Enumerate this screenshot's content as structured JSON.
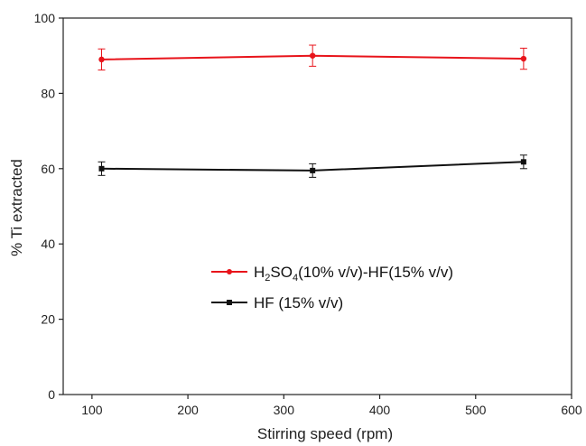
{
  "chart_data": {
    "type": "line",
    "xlabel": "Stirring speed (rpm)",
    "ylabel": "% Ti extracted",
    "xlim": [
      70,
      600
    ],
    "ylim": [
      0,
      100
    ],
    "xticks": [
      100,
      200,
      300,
      400,
      500,
      600
    ],
    "yticks": [
      0,
      20,
      40,
      60,
      80,
      100
    ],
    "x": [
      110,
      330,
      550
    ],
    "grid": false,
    "legend_position": "center-left",
    "series": [
      {
        "name_parts": {
          "a": "H",
          "a_sub": "2",
          "b": "SO",
          "b_sub": "4",
          "c": "(10% v/v)-HF(15% v/v)"
        },
        "values": [
          89,
          90,
          89.2
        ],
        "errors": [
          2.8,
          2.8,
          2.8
        ],
        "color": "#e8141b",
        "marker": "circle"
      },
      {
        "name": "HF (15% v/v)",
        "values": [
          60,
          59.5,
          61.8
        ],
        "errors": [
          1.8,
          1.8,
          1.8
        ],
        "color": "#111111",
        "marker": "square"
      }
    ]
  }
}
